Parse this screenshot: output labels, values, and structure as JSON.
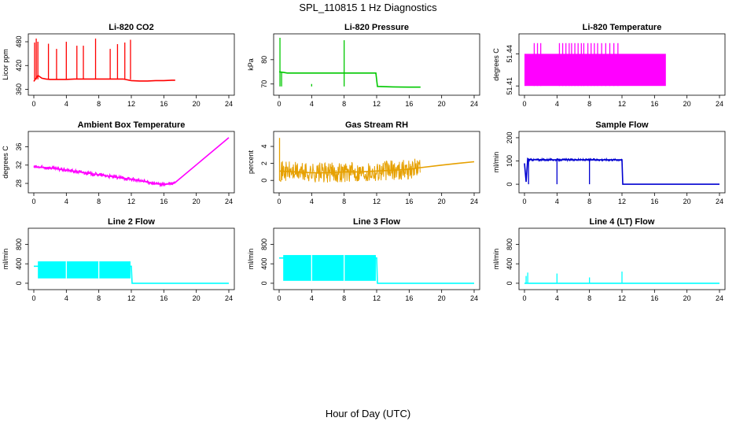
{
  "suptitle": "SPL_110815  1 Hz Diagnostics",
  "xlabel": "Hour of Day (UTC)",
  "chart_data": [
    {
      "type": "line",
      "title": "Li-820 CO2",
      "ylabel": "Licor ppm",
      "color": "#ff0000",
      "xlim": [
        0,
        24
      ],
      "xticks": [
        "0",
        "4",
        "8",
        "12",
        "16",
        "20",
        "24"
      ],
      "ylim": [
        355,
        490
      ],
      "yticks": [
        "360",
        "420",
        "480"
      ],
      "series": [
        {
          "x": [
            0,
            0.5,
            1,
            1.5,
            2,
            3,
            4,
            5,
            6,
            7,
            8,
            9,
            10,
            11,
            12,
            13,
            14,
            15,
            16,
            17,
            17.4
          ],
          "y": [
            380,
            395,
            388,
            386,
            385,
            385,
            385,
            386,
            386,
            386,
            386,
            386,
            386,
            386,
            382,
            381,
            381,
            382,
            382,
            383,
            383
          ]
        }
      ],
      "spikes": {
        "x": [
          0.1,
          0.3,
          0.5,
          1.8,
          2.8,
          4.0,
          5.3,
          6.1,
          7.6,
          9.4,
          10.3,
          11.2,
          11.9
        ],
        "y": [
          478,
          488,
          480,
          475,
          462,
          480,
          470,
          470,
          488,
          462,
          474,
          478,
          485
        ],
        "base": 385
      }
    },
    {
      "type": "line",
      "title": "Li-820 Pressure",
      "ylabel": "kPa",
      "color": "#00c800",
      "xlim": [
        0,
        24
      ],
      "xticks": [
        "0",
        "4",
        "8",
        "12",
        "16",
        "20",
        "24"
      ],
      "ylim": [
        67,
        89
      ],
      "yticks": [
        "70",
        "80"
      ],
      "series": [
        {
          "x": [
            0,
            0.5,
            1,
            2,
            3,
            4,
            5,
            6,
            7,
            8,
            9,
            10,
            11,
            11.9,
            12.1,
            14,
            16,
            17.4
          ],
          "y": [
            75,
            74.8,
            74.5,
            74.5,
            74.5,
            74.5,
            74.5,
            74.5,
            74.5,
            74.5,
            74.5,
            74.5,
            74.5,
            74.5,
            69,
            68.8,
            68.7,
            68.7
          ]
        }
      ],
      "spikes": {
        "x": [
          0.1,
          0.3,
          4.0,
          8.0
        ],
        "y": [
          89,
          75,
          70,
          88
        ],
        "low": [
          69,
          69,
          69,
          69
        ]
      }
    },
    {
      "type": "line",
      "title": "Li-820 Temperature",
      "ylabel": "degrees C",
      "color": "#ff00ff",
      "xlim": [
        0,
        24
      ],
      "xticks": [
        "0",
        "4",
        "8",
        "12",
        "16",
        "20",
        "24"
      ],
      "ylim": [
        51.405,
        51.455
      ],
      "yticks": [
        "51.41",
        "51.44"
      ],
      "levels": [
        51.41,
        51.44
      ],
      "band": {
        "x0": 0,
        "x1": 17.4,
        "lo": 51.41,
        "hi": 51.44
      },
      "spikes": {
        "x": [
          1.2,
          1.6,
          2.0,
          4.3,
          4.7,
          5.1,
          5.5,
          5.8,
          6.2,
          6.6,
          7.0,
          7.3,
          7.8,
          8.2,
          8.6,
          9.0,
          9.5,
          10.0,
          10.5,
          11.0,
          11.5
        ],
        "y": [
          51.45,
          51.45,
          51.45,
          51.45,
          51.45,
          51.45,
          51.45,
          51.45,
          51.45,
          51.45,
          51.45,
          51.45,
          51.45,
          51.45,
          51.45,
          51.45,
          51.45,
          51.45,
          51.45,
          51.45,
          51.45
        ]
      }
    },
    {
      "type": "line",
      "title": "Ambient Box Temperature",
      "ylabel": "degrees C",
      "color": "#ff00ff",
      "xlim": [
        0,
        24
      ],
      "xticks": [
        "0",
        "4",
        "8",
        "12",
        "16",
        "20",
        "24"
      ],
      "ylim": [
        26.8,
        38.5
      ],
      "yticks": [
        "28",
        "32",
        "36"
      ],
      "series": [
        {
          "x": [
            0,
            2,
            4,
            6,
            8,
            10,
            12,
            14,
            15,
            16,
            17,
            17.4,
            24
          ],
          "y": [
            31.6,
            31.4,
            30.9,
            30.4,
            29.9,
            29.4,
            28.9,
            28.3,
            27.9,
            27.8,
            27.9,
            28.2,
            38
          ]
        }
      ],
      "noise": {
        "x0": 0,
        "x1": 17.4,
        "amp": 0.45
      }
    },
    {
      "type": "line",
      "title": "Gas Stream RH",
      "ylabel": "percent",
      "color": "#e6a000",
      "xlim": [
        0,
        24
      ],
      "xticks": [
        "0",
        "4",
        "8",
        "12",
        "16",
        "20",
        "24"
      ],
      "ylim": [
        -1,
        5.3
      ],
      "yticks": [
        "0",
        "2",
        "4"
      ],
      "series": [
        {
          "x": [
            0,
            2,
            4,
            6,
            8,
            10,
            12,
            14,
            16,
            17.4,
            20,
            22,
            24
          ],
          "y": [
            1.1,
            1.0,
            0.9,
            0.9,
            1.0,
            1.0,
            1.1,
            1.2,
            1.3,
            1.5,
            1.8,
            2.0,
            2.2
          ]
        }
      ],
      "noise": {
        "x0": 0,
        "x1": 17.4,
        "amp": 1.2
      },
      "spikes": {
        "x": [
          0.05
        ],
        "y": [
          5.0
        ]
      }
    },
    {
      "type": "line",
      "title": "Sample Flow",
      "ylabel": "ml/min",
      "color": "#0000d0",
      "xlim": [
        0,
        24
      ],
      "xticks": [
        "0",
        "4",
        "8",
        "12",
        "16",
        "20",
        "24"
      ],
      "ylim": [
        -20,
        210
      ],
      "yticks": [
        "0",
        "100",
        "200"
      ],
      "series": [
        {
          "x": [
            0,
            0.2,
            0.4,
            0.6,
            12,
            12.1,
            24
          ],
          "y": [
            90,
            10,
            110,
            105,
            105,
            0,
            0
          ]
        }
      ],
      "noise": {
        "x0": 0.4,
        "x1": 12,
        "amp": 5
      },
      "dips": {
        "x": [
          0.5,
          4.0,
          8.0
        ],
        "y": [
          0,
          0,
          0
        ]
      }
    },
    {
      "type": "line",
      "title": "Line 2 Flow",
      "ylabel": "ml/min",
      "color": "#00ffff",
      "xlim": [
        0,
        24
      ],
      "xticks": [
        "0",
        "4",
        "8",
        "12",
        "16",
        "20",
        "24"
      ],
      "ylim": [
        -50,
        1050
      ],
      "yticks": [
        "0",
        "400",
        "800"
      ],
      "series": [
        {
          "x": [
            0,
            0.5,
            12,
            12.1,
            24
          ],
          "y": [
            350,
            350,
            350,
            0,
            0
          ]
        }
      ],
      "band": {
        "x0": 0.5,
        "x1": 11.9,
        "lo": 100,
        "hi": 450
      },
      "dips": {
        "x": [
          4.0,
          8.0
        ],
        "y": [
          100,
          100
        ]
      }
    },
    {
      "type": "line",
      "title": "Line 3 Flow",
      "ylabel": "ml/min",
      "color": "#00ffff",
      "xlim": [
        0,
        24
      ],
      "xticks": [
        "0",
        "4",
        "8",
        "12",
        "16",
        "20",
        "24"
      ],
      "ylim": [
        -50,
        1050
      ],
      "yticks": [
        "0",
        "400",
        "800"
      ],
      "series": [
        {
          "x": [
            0,
            0.5,
            12,
            12.1,
            24
          ],
          "y": [
            520,
            520,
            520,
            0,
            0
          ]
        }
      ],
      "band": {
        "x0": 0.5,
        "x1": 11.9,
        "lo": 50,
        "hi": 580
      },
      "dips": {
        "x": [
          4.0,
          8.0
        ],
        "y": [
          50,
          50
        ]
      }
    },
    {
      "type": "line",
      "title": "Line 4 (LT) Flow",
      "ylabel": "ml/min",
      "color": "#00ffff",
      "xlim": [
        0,
        24
      ],
      "xticks": [
        "0",
        "4",
        "8",
        "12",
        "16",
        "20",
        "24"
      ],
      "ylim": [
        -50,
        1050
      ],
      "yticks": [
        "0",
        "400",
        "800"
      ],
      "series": [
        {
          "x": [
            0,
            24
          ],
          "y": [
            0,
            0
          ]
        }
      ],
      "spikes": {
        "x": [
          0.2,
          0.4,
          4.0,
          8.0,
          12.0
        ],
        "y": [
          150,
          220,
          200,
          120,
          240
        ]
      }
    }
  ]
}
